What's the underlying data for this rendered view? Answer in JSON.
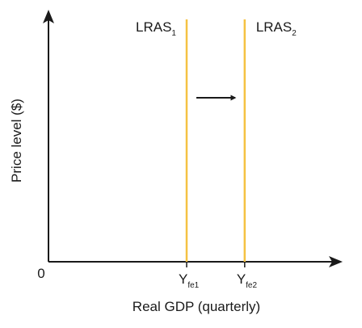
{
  "chart_data": {
    "type": "line",
    "title": "",
    "xlabel": "Real GDP (quarterly)",
    "ylabel": "Price level ($)",
    "origin_label": "0",
    "grid": false,
    "legend": "none",
    "curves": [
      {
        "id": "lras1",
        "label": "LRAS",
        "label_sub": "1",
        "x_tick_label": "Y",
        "x_tick_sub": "fe1",
        "x": 1.0,
        "color": "#f5c242"
      },
      {
        "id": "lras2",
        "label": "LRAS",
        "label_sub": "2",
        "x_tick_label": "Y",
        "x_tick_sub": "fe2",
        "x": 1.42,
        "color": "#f5c242"
      }
    ],
    "shift_arrow": {
      "direction": "right",
      "color": "#1a1a1a"
    },
    "axis_color": "#1a1a1a"
  }
}
